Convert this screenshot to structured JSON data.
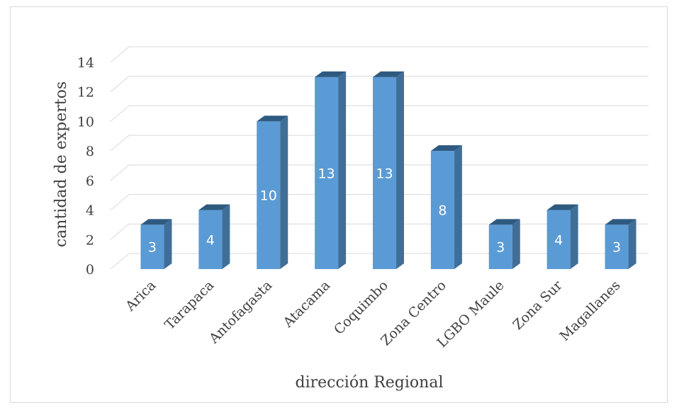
{
  "chart_data": {
    "type": "bar",
    "style": "3d-column",
    "categories": [
      "Arica",
      "Tarapaca",
      "Antofagasta",
      "Atacama",
      "Coquimbo",
      "Zona Centro",
      "LGBO Maule",
      "Zona Sur",
      "Magallanes"
    ],
    "values": [
      3,
      4,
      10,
      13,
      13,
      8,
      3,
      4,
      3
    ],
    "data_labels": [
      "3",
      "4",
      "10",
      "13",
      "13",
      "8",
      "3",
      "4",
      "3"
    ],
    "xlabel": "dirección Regional",
    "ylabel": "cantidad de expertos",
    "ylim": [
      0,
      14
    ],
    "yticks": [
      "0",
      "2",
      "4",
      "6",
      "8",
      "10",
      "12",
      "14"
    ],
    "grid": true,
    "legend": "none",
    "colors": {
      "bar_front": "#5b9bd5",
      "bar_side": "#3f6f99",
      "bar_top": "#2e5a80",
      "grid": "#d9d9d9",
      "text": "#404040"
    }
  }
}
